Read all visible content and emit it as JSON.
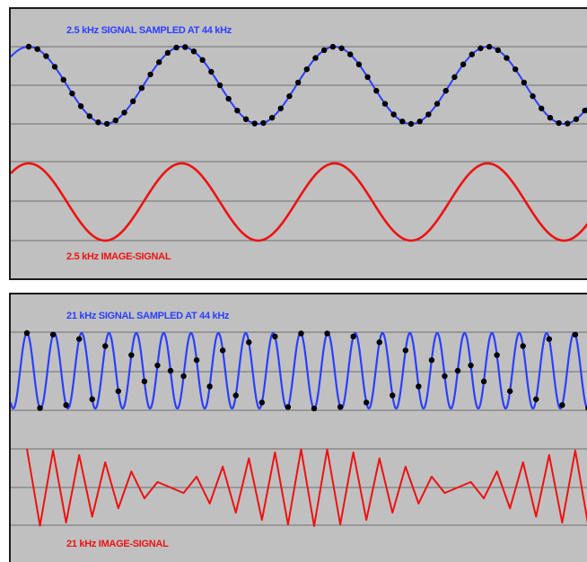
{
  "panels": [
    {
      "signal_label": "2.5 kHz SIGNAL SAMPLED AT 44 kHz",
      "image_label": "2.5 kHz IMAGE-SIGNAL",
      "signal_khz": 2.5,
      "sample_rate_khz": 44
    },
    {
      "signal_label": "21 kHz SIGNAL SAMPLED AT 44 kHz",
      "image_label": "21 kHz IMAGE-SIGNAL",
      "signal_khz": 21,
      "sample_rate_khz": 44
    }
  ],
  "colors": {
    "panel_bg": "#c0c0c0",
    "grid": "#6e6e6e",
    "signal": "#2a3fff",
    "image_signal": "#ee1111",
    "sample_dot": "#000000"
  }
}
